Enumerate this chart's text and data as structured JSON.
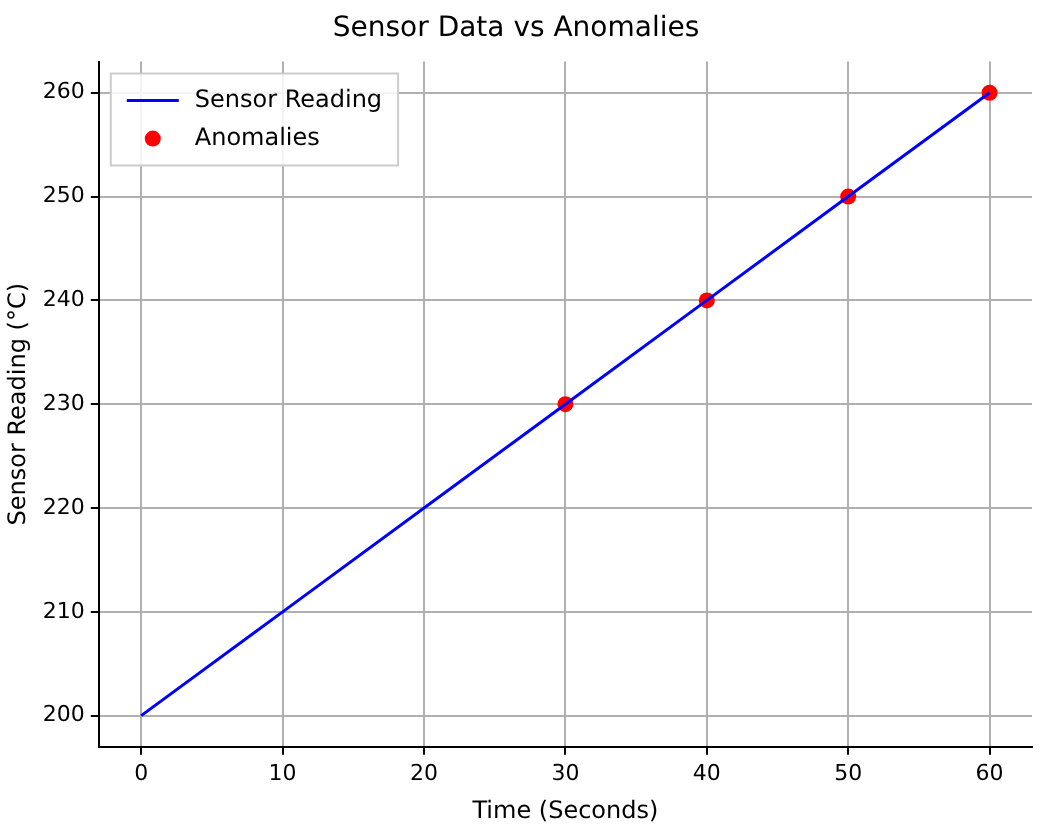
{
  "chart_data": {
    "type": "line",
    "title": "Sensor Data vs Anomalies",
    "xlabel": "Time (Seconds)",
    "ylabel": "Sensor Reading (°C)",
    "xlim": [
      -3,
      63
    ],
    "xticks": [
      0,
      10,
      20,
      30,
      40,
      50,
      60
    ],
    "ylim": [
      197,
      263
    ],
    "yticks": [
      200,
      210,
      220,
      230,
      240,
      250,
      260
    ],
    "grid": true,
    "legend": "top left",
    "series": [
      {
        "name": "Sensor Reading",
        "type": "line",
        "color": "#0000ff",
        "marker": "none",
        "x": [
          0,
          10,
          20,
          30,
          40,
          50,
          60
        ],
        "values": [
          200,
          210,
          220,
          230,
          240,
          250,
          260
        ]
      },
      {
        "name": "Anomalies",
        "type": "scatter",
        "color": "#ff0000",
        "marker": "circle",
        "x": [
          30,
          40,
          50,
          60
        ],
        "values": [
          230,
          240,
          250,
          260
        ]
      }
    ]
  }
}
